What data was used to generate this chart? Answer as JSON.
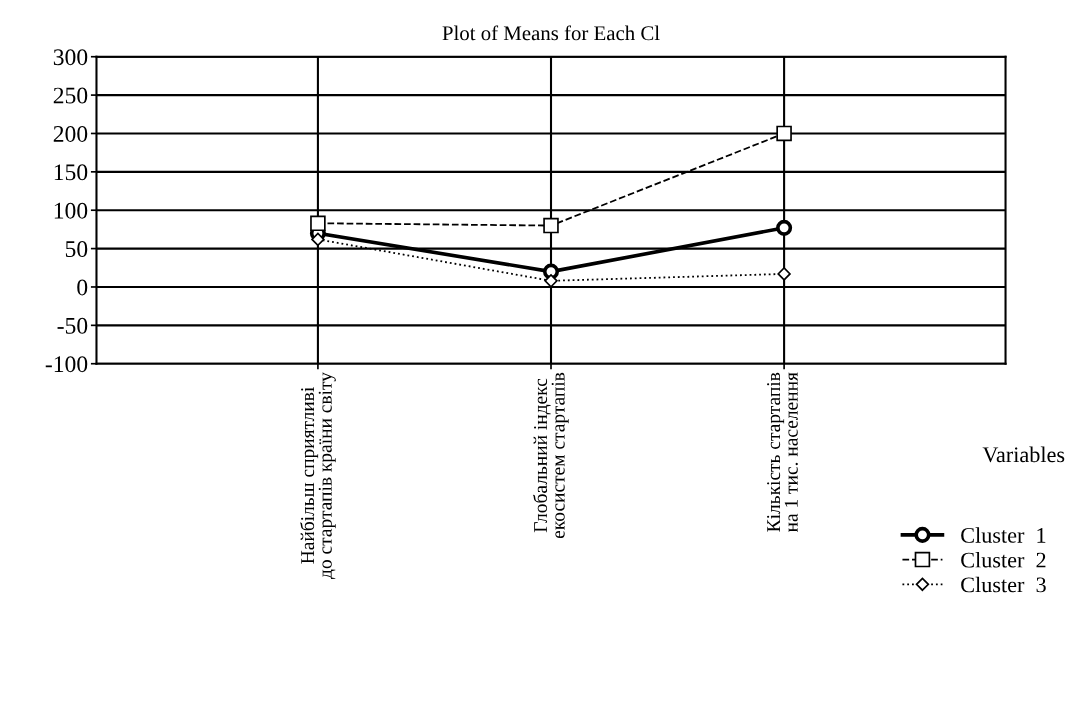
{
  "chart_data": {
    "type": "line",
    "title": "Plot of Means for Each Cl",
    "xlabel": "Variables",
    "categories": [
      "Найбільш сприятливі\nдо стартапів країни світу",
      "Глобальний індекс\nекосистем стартапів",
      "Кількість стартапів\nна 1 тис. населення"
    ],
    "series": [
      {
        "name": "Cluster  1",
        "color": "#000000",
        "values": [
          70,
          20,
          77
        ],
        "marker": "circle",
        "line_style": "solid"
      },
      {
        "name": "Cluster  2",
        "color": "#000000",
        "values": [
          83,
          80,
          200
        ],
        "marker": "square",
        "line_style": "dashed"
      },
      {
        "name": "Cluster  3",
        "color": "#000000",
        "values": [
          62,
          8,
          17
        ],
        "marker": "diamond",
        "line_style": "dotted"
      }
    ],
    "ylim": [
      -100,
      300
    ],
    "yticks": [
      -100,
      -50,
      0,
      50,
      100,
      150,
      200,
      250,
      300
    ],
    "grid": true,
    "legend": "bottom right"
  }
}
